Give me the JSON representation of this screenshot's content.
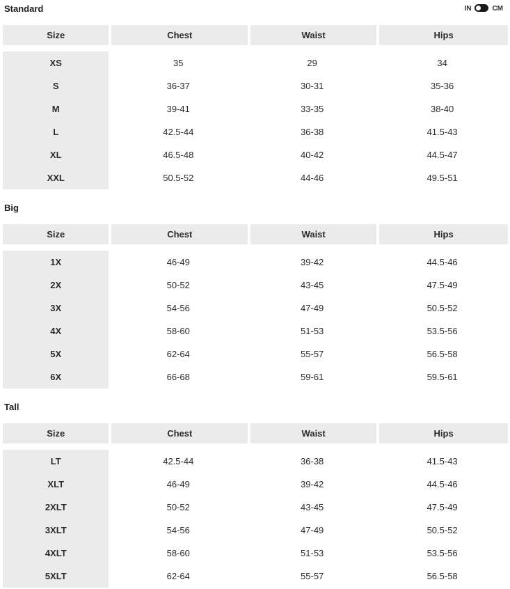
{
  "unit_toggle": {
    "in_label": "IN",
    "cm_label": "CM",
    "selected_unit": "IN"
  },
  "colors": {
    "header_bg": "#ebebeb",
    "text": "#2b2b2b",
    "toggle_bg": "#1a1a1a",
    "toggle_knob": "#ffffff"
  },
  "columns": [
    "Size",
    "Chest",
    "Waist",
    "Hips"
  ],
  "sections": [
    {
      "title": "Standard",
      "rows": [
        {
          "size": "XS",
          "chest": "35",
          "waist": "29",
          "hips": "34"
        },
        {
          "size": "S",
          "chest": "36-37",
          "waist": "30-31",
          "hips": "35-36"
        },
        {
          "size": "M",
          "chest": "39-41",
          "waist": "33-35",
          "hips": "38-40"
        },
        {
          "size": "L",
          "chest": "42.5-44",
          "waist": "36-38",
          "hips": "41.5-43"
        },
        {
          "size": "XL",
          "chest": "46.5-48",
          "waist": "40-42",
          "hips": "44.5-47"
        },
        {
          "size": "XXL",
          "chest": "50.5-52",
          "waist": "44-46",
          "hips": "49.5-51"
        }
      ]
    },
    {
      "title": "Big",
      "rows": [
        {
          "size": "1X",
          "chest": "46-49",
          "waist": "39-42",
          "hips": "44.5-46"
        },
        {
          "size": "2X",
          "chest": "50-52",
          "waist": "43-45",
          "hips": "47.5-49"
        },
        {
          "size": "3X",
          "chest": "54-56",
          "waist": "47-49",
          "hips": "50.5-52"
        },
        {
          "size": "4X",
          "chest": "58-60",
          "waist": "51-53",
          "hips": "53.5-56"
        },
        {
          "size": "5X",
          "chest": "62-64",
          "waist": "55-57",
          "hips": "56.5-58"
        },
        {
          "size": "6X",
          "chest": "66-68",
          "waist": "59-61",
          "hips": "59.5-61"
        }
      ]
    },
    {
      "title": "Tall",
      "rows": [
        {
          "size": "LT",
          "chest": "42.5-44",
          "waist": "36-38",
          "hips": "41.5-43"
        },
        {
          "size": "XLT",
          "chest": "46-49",
          "waist": "39-42",
          "hips": "44.5-46"
        },
        {
          "size": "2XLT",
          "chest": "50-52",
          "waist": "43-45",
          "hips": "47.5-49"
        },
        {
          "size": "3XLT",
          "chest": "54-56",
          "waist": "47-49",
          "hips": "50.5-52"
        },
        {
          "size": "4XLT",
          "chest": "58-60",
          "waist": "51-53",
          "hips": "53.5-56"
        },
        {
          "size": "5XLT",
          "chest": "62-64",
          "waist": "55-57",
          "hips": "56.5-58"
        }
      ]
    }
  ]
}
